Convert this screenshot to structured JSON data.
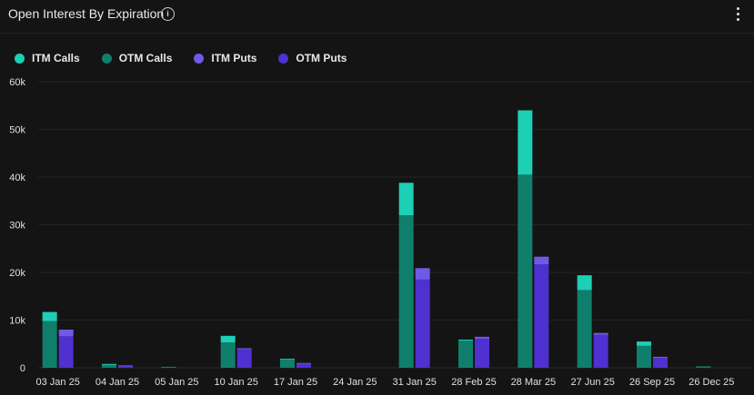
{
  "header": {
    "title": "Open Interest By Expiration",
    "info_icon": "info-icon",
    "menu_icon": "more-vertical-icon"
  },
  "legend": [
    {
      "label": "ITM Calls",
      "color": "#1ccfb5"
    },
    {
      "label": "OTM Calls",
      "color": "#0f7f6c"
    },
    {
      "label": "ITM Puts",
      "color": "#6f5ae6"
    },
    {
      "label": "OTM Puts",
      "color": "#4f30d0"
    }
  ],
  "chart_data": {
    "type": "bar",
    "stacked": true,
    "title": "Open Interest By Expiration",
    "categories": [
      "03 Jan 25",
      "04 Jan 25",
      "05 Jan 25",
      "10 Jan 25",
      "17 Jan 25",
      "24 Jan 25",
      "31 Jan 25",
      "28 Feb 25",
      "28 Mar 25",
      "27 Jun 25",
      "26 Sep 25",
      "26 Dec 25"
    ],
    "ylim": [
      0,
      60000
    ],
    "yticks": [
      "0",
      "10k",
      "20k",
      "30k",
      "40k",
      "50k",
      "60k"
    ],
    "ytick_values": [
      0,
      10000,
      20000,
      30000,
      40000,
      50000,
      60000
    ],
    "calls": {
      "otm": [
        9800,
        600,
        200,
        5300,
        1800,
        0,
        32000,
        5700,
        40500,
        16300,
        4600,
        300
      ],
      "itm": [
        1900,
        200,
        0,
        1400,
        100,
        0,
        6800,
        200,
        13500,
        3100,
        900,
        0
      ]
    },
    "puts": {
      "otm": [
        6600,
        400,
        0,
        3900,
        900,
        0,
        18500,
        6100,
        21700,
        6900,
        2100,
        0
      ],
      "itm": [
        1400,
        100,
        0,
        200,
        100,
        0,
        2400,
        400,
        1600,
        400,
        200,
        0
      ]
    },
    "series_colors": {
      "itm_calls": "#1ccfb5",
      "otm_calls": "#0f7f6c",
      "itm_puts": "#6f5ae6",
      "otm_puts": "#4f30d0"
    },
    "grid": true,
    "legend_position": "top-left"
  }
}
